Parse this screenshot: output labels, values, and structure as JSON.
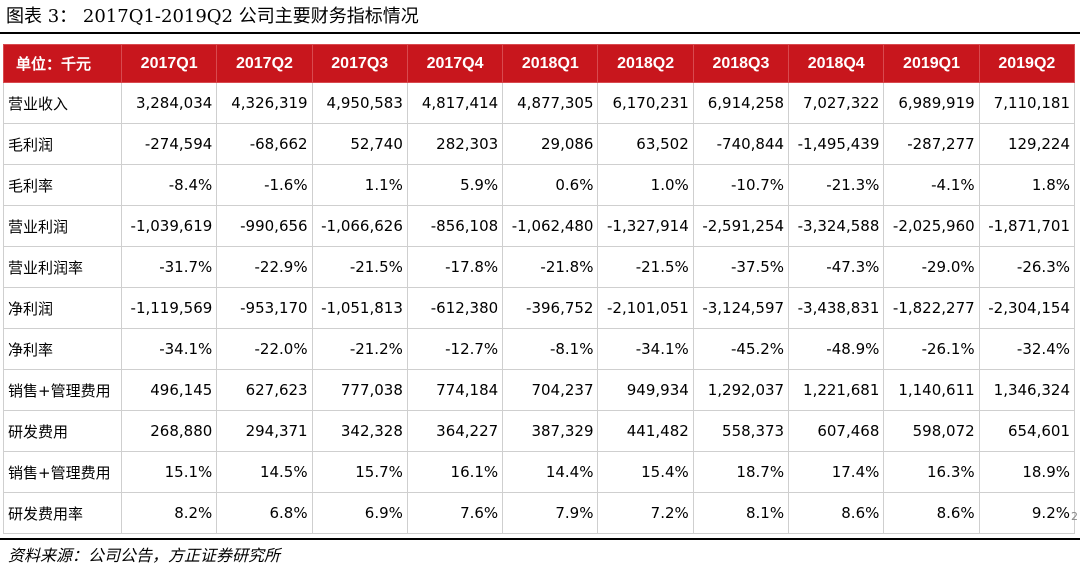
{
  "title": "图表 3： 2017Q1-2019Q2 公司主要财务指标情况",
  "table": {
    "header": [
      "单位：千元",
      "2017Q1",
      "2017Q2",
      "2017Q3",
      "2017Q4",
      "2018Q1",
      "2018Q2",
      "2018Q3",
      "2018Q4",
      "2019Q1",
      "2019Q2"
    ],
    "rows": [
      [
        "营业收入",
        "3,284,034",
        "4,326,319",
        "4,950,583",
        "4,817,414",
        "4,877,305",
        "6,170,231",
        "6,914,258",
        "7,027,322",
        "6,989,919",
        "7,110,181"
      ],
      [
        "毛利润",
        "-274,594",
        "-68,662",
        "52,740",
        "282,303",
        "29,086",
        "63,502",
        "-740,844",
        "-1,495,439",
        "-287,277",
        "129,224"
      ],
      [
        "毛利率",
        "-8.4%",
        "-1.6%",
        "1.1%",
        "5.9%",
        "0.6%",
        "1.0%",
        "-10.7%",
        "-21.3%",
        "-4.1%",
        "1.8%"
      ],
      [
        "营业利润",
        "-1,039,619",
        "-990,656",
        "-1,066,626",
        "-856,108",
        "-1,062,480",
        "-1,327,914",
        "-2,591,254",
        "-3,324,588",
        "-2,025,960",
        "-1,871,701"
      ],
      [
        "营业利润率",
        "-31.7%",
        "-22.9%",
        "-21.5%",
        "-17.8%",
        "-21.8%",
        "-21.5%",
        "-37.5%",
        "-47.3%",
        "-29.0%",
        "-26.3%"
      ],
      [
        "净利润",
        "-1,119,569",
        "-953,170",
        "-1,051,813",
        "-612,380",
        "-396,752",
        "-2,101,051",
        "-3,124,597",
        "-3,438,831",
        "-1,822,277",
        "-2,304,154"
      ],
      [
        "净利率",
        "-34.1%",
        "-22.0%",
        "-21.2%",
        "-12.7%",
        "-8.1%",
        "-34.1%",
        "-45.2%",
        "-48.9%",
        "-26.1%",
        "-32.4%"
      ],
      [
        "销售+管理费用",
        "496,145",
        "627,623",
        "777,038",
        "774,184",
        "704,237",
        "949,934",
        "1,292,037",
        "1,221,681",
        "1,140,611",
        "1,346,324"
      ],
      [
        "研发费用",
        "268,880",
        "294,371",
        "342,328",
        "364,227",
        "387,329",
        "441,482",
        "558,373",
        "607,468",
        "598,072",
        "654,601"
      ],
      [
        "销售+管理费用",
        "15.1%",
        "14.5%",
        "15.7%",
        "16.1%",
        "14.4%",
        "15.4%",
        "18.7%",
        "17.4%",
        "16.3%",
        "18.9%"
      ],
      [
        "研发费用率",
        "8.2%",
        "6.8%",
        "6.9%",
        "7.6%",
        "7.9%",
        "7.2%",
        "8.1%",
        "8.6%",
        "8.6%",
        "9.2%"
      ]
    ]
  },
  "corner_mark": "2",
  "source": "资料来源：公司公告，方正证券研究所",
  "colors": {
    "header_bg": "#c8161d",
    "header_text": "#ffffff",
    "grid": "#cfcfcf"
  }
}
